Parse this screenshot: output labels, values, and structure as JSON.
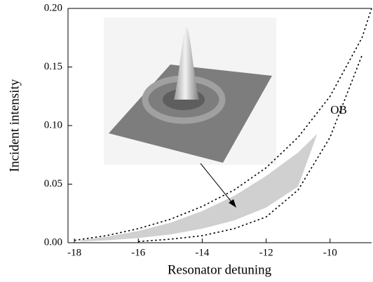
{
  "chart_data": {
    "type": "line",
    "xlabel": "Resonator detuning",
    "ylabel": "Incident intensity",
    "annotation": "OB",
    "xlim": [
      -18.2,
      -8.7
    ],
    "ylim": [
      0,
      0.2
    ],
    "xticks": [
      -18,
      -16,
      -14,
      -12,
      -10
    ],
    "yticks": [
      {
        "value": 0,
        "label": "0.00"
      },
      {
        "value": 0.05,
        "label": "0.05"
      },
      {
        "value": 0.1,
        "label": "0.10"
      },
      {
        "value": 0.15,
        "label": "0.15"
      },
      {
        "value": 0.2,
        "label": "0.20"
      }
    ],
    "x": [
      -18,
      -17,
      -16,
      -15,
      -14,
      -13,
      -12,
      -11,
      -10,
      -9,
      -8.7
    ],
    "series": [
      {
        "color": "#000000",
        "values": [
          0.002,
          0.006,
          0.012,
          0.02,
          0.031,
          0.045,
          0.064,
          0.09,
          0.125,
          0.175,
          0.2
        ]
      },
      {
        "color": "#000000",
        "values": [
          null,
          null,
          0.001,
          0.003,
          0.006,
          0.012,
          0.022,
          0.045,
          0.09,
          0.16,
          null
        ]
      }
    ],
    "band": {
      "color": "#d0d0d0",
      "x": [
        -17.8,
        -17,
        -16,
        -15,
        -14,
        -13,
        -12,
        -11,
        -10.4
      ],
      "upper": [
        0.002,
        0.005,
        0.01,
        0.017,
        0.027,
        0.04,
        0.057,
        0.077,
        0.093
      ],
      "lower": [
        0.001,
        0.002,
        0.004,
        0.007,
        0.012,
        0.019,
        0.03,
        0.048,
        0.093
      ]
    }
  }
}
